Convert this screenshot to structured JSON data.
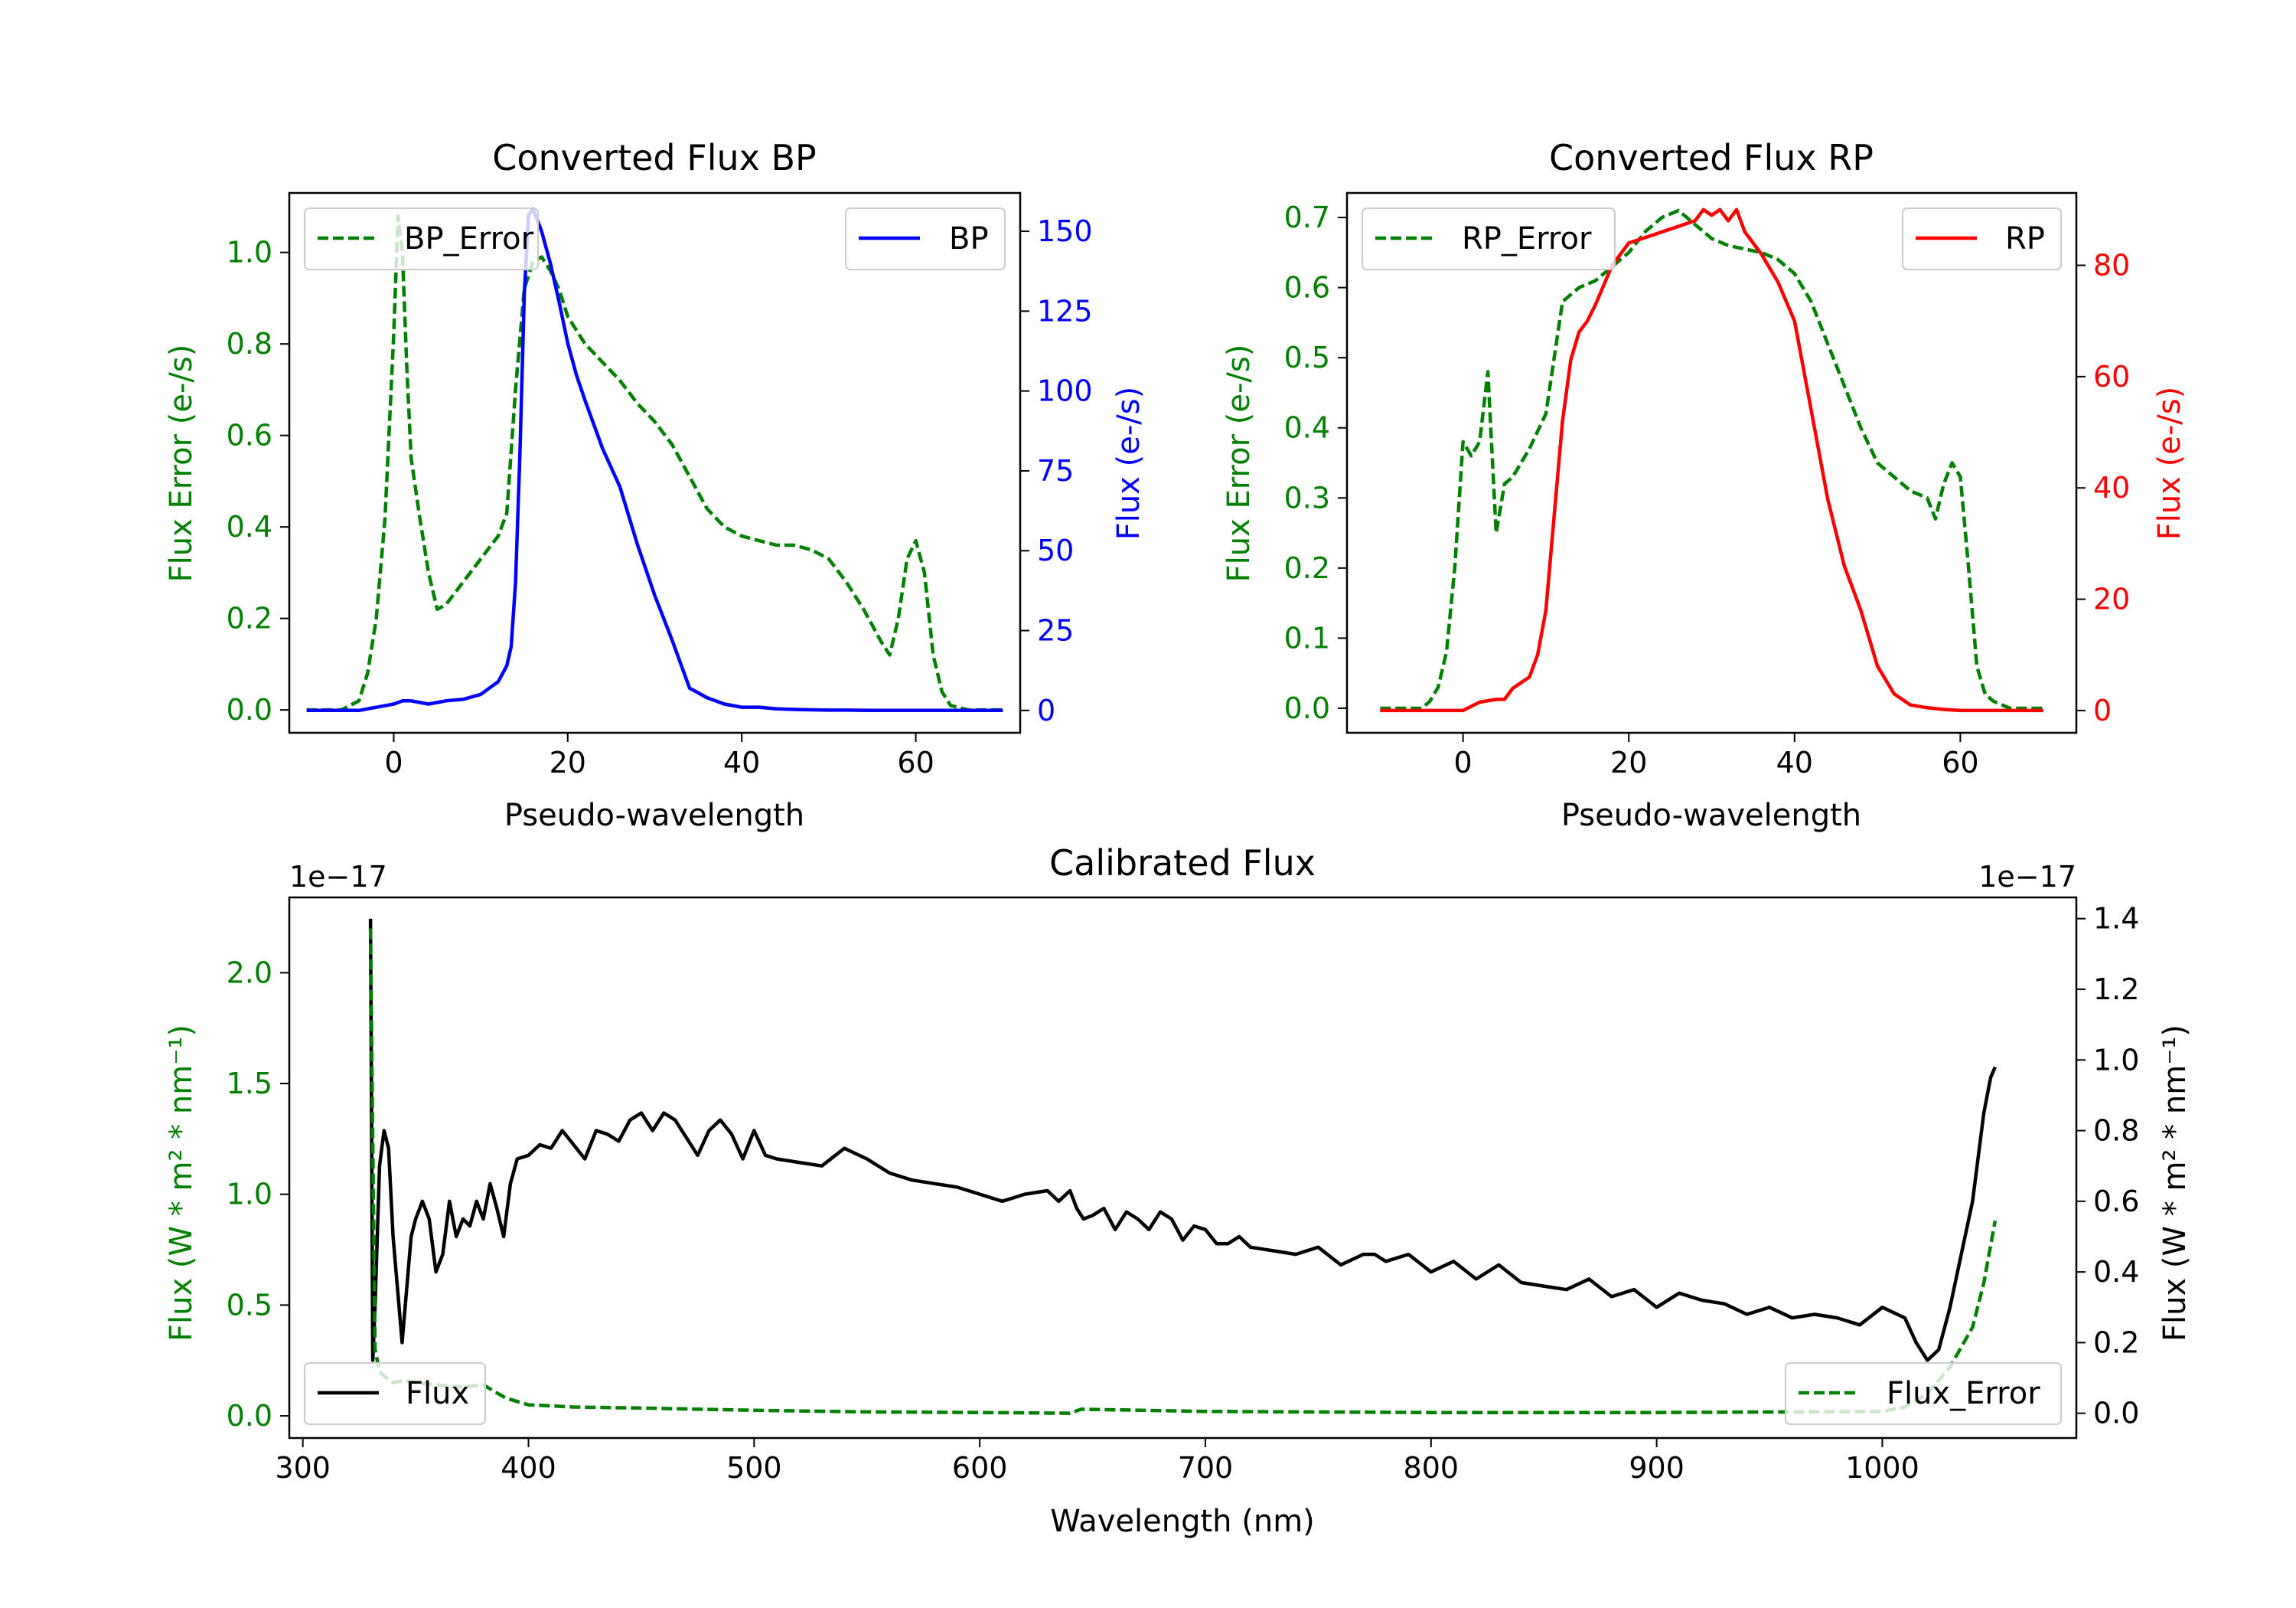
{
  "figure": {
    "background": "#ffffff"
  },
  "colors": {
    "error": "#008000",
    "bp": "#0000ff",
    "rp": "#ff0000",
    "flux": "#000000",
    "axis": "#000000"
  },
  "chart_data": [
    {
      "type": "line",
      "title": "Converted Flux BP",
      "xlabel": "Pseudo-wavelength",
      "ylabel_left": "Flux Error (e-/s)",
      "ylabel_right": "Flux (e-/s)",
      "xlim": [
        -12,
        72
      ],
      "ylim_left": [
        -0.05,
        1.13
      ],
      "ylim_right": [
        -7,
        162
      ],
      "xticks": [
        0,
        20,
        40,
        60
      ],
      "yticks_left": [
        0.0,
        0.2,
        0.4,
        0.6,
        0.8,
        1.0
      ],
      "yticks_left_labels": [
        "0.0",
        "0.2",
        "0.4",
        "0.6",
        "0.8",
        "1.0"
      ],
      "yticks_right": [
        0,
        25,
        50,
        75,
        100,
        125,
        150
      ],
      "yticks_right_labels": [
        "0",
        "25",
        "50",
        "75",
        "100",
        "125",
        "150"
      ],
      "legend_left": "BP_Error",
      "legend_right": "BP",
      "series_error": {
        "name": "BP_Error",
        "x": [
          -10,
          -6,
          -4,
          -3,
          -2,
          -1,
          0,
          0.5,
          1,
          1.5,
          2,
          3,
          4,
          5,
          6,
          8,
          10,
          12,
          13,
          14,
          15,
          16,
          17,
          18,
          19,
          20,
          22,
          24,
          26,
          28,
          30,
          32,
          34,
          36,
          38,
          40,
          42,
          44,
          46,
          48,
          50,
          52,
          54,
          56,
          57,
          58,
          59,
          60,
          61,
          62,
          63,
          64,
          66,
          68,
          70
        ],
        "y": [
          0.0,
          0.0,
          0.02,
          0.08,
          0.2,
          0.42,
          0.82,
          1.08,
          1.0,
          0.75,
          0.55,
          0.42,
          0.3,
          0.22,
          0.23,
          0.28,
          0.33,
          0.38,
          0.43,
          0.7,
          0.92,
          0.98,
          0.99,
          0.96,
          0.92,
          0.86,
          0.8,
          0.76,
          0.72,
          0.67,
          0.63,
          0.58,
          0.51,
          0.44,
          0.4,
          0.38,
          0.37,
          0.36,
          0.36,
          0.35,
          0.33,
          0.28,
          0.22,
          0.15,
          0.12,
          0.2,
          0.33,
          0.37,
          0.3,
          0.12,
          0.04,
          0.01,
          0.0,
          0.0,
          0.0
        ]
      },
      "series_flux": {
        "name": "BP",
        "x": [
          -10,
          -4,
          0,
          1,
          2,
          4,
          6,
          8,
          10,
          11,
          12,
          13,
          13.5,
          14,
          14.5,
          15,
          15.5,
          16,
          17,
          18,
          19,
          20,
          21,
          22,
          24,
          26,
          28,
          30,
          32,
          34,
          36,
          38,
          40,
          42,
          44,
          46,
          48,
          50,
          52,
          55,
          60,
          65,
          70
        ],
        "y": [
          0,
          0,
          2,
          3,
          3,
          2,
          3,
          3.5,
          5,
          7,
          9,
          14,
          20,
          40,
          80,
          130,
          155,
          157,
          150,
          140,
          128,
          115,
          105,
          97,
          82,
          70,
          52,
          36,
          22,
          7,
          4,
          2,
          1,
          1,
          0.5,
          0.3,
          0.2,
          0.1,
          0.1,
          0,
          0,
          0,
          0
        ]
      }
    },
    {
      "type": "line",
      "title": "Converted Flux RP",
      "xlabel": "Pseudo-wavelength",
      "ylabel_left": "Flux Error (e-/s)",
      "ylabel_right": "Flux (e-/s)",
      "xlim": [
        -14,
        74
      ],
      "ylim_left": [
        -0.035,
        0.735
      ],
      "ylim_right": [
        -4,
        93
      ],
      "xticks": [
        0,
        20,
        40,
        60
      ],
      "yticks_left": [
        0.0,
        0.1,
        0.2,
        0.3,
        0.4,
        0.5,
        0.6,
        0.7
      ],
      "yticks_left_labels": [
        "0.0",
        "0.1",
        "0.2",
        "0.3",
        "0.4",
        "0.5",
        "0.6",
        "0.7"
      ],
      "yticks_right": [
        0,
        20,
        40,
        60,
        80
      ],
      "yticks_right_labels": [
        "0",
        "20",
        "40",
        "60",
        "80"
      ],
      "legend_left": "RP_Error",
      "legend_right": "RP",
      "series_error": {
        "name": "RP_Error",
        "x": [
          -10,
          -5,
          -4,
          -3,
          -2,
          -1,
          0,
          1,
          2,
          3,
          4,
          5,
          6,
          8,
          10,
          12,
          14,
          16,
          18,
          20,
          22,
          24,
          26,
          28,
          30,
          32,
          34,
          36,
          38,
          40,
          42,
          44,
          46,
          48,
          50,
          52,
          54,
          56,
          57,
          58,
          59,
          60,
          61,
          62,
          63,
          64,
          66,
          70
        ],
        "y": [
          0,
          0,
          0.01,
          0.03,
          0.08,
          0.2,
          0.38,
          0.36,
          0.38,
          0.48,
          0.25,
          0.32,
          0.33,
          0.37,
          0.42,
          0.58,
          0.6,
          0.61,
          0.63,
          0.65,
          0.68,
          0.7,
          0.71,
          0.69,
          0.67,
          0.66,
          0.655,
          0.65,
          0.64,
          0.62,
          0.58,
          0.52,
          0.46,
          0.4,
          0.35,
          0.33,
          0.31,
          0.3,
          0.27,
          0.32,
          0.35,
          0.33,
          0.2,
          0.06,
          0.02,
          0.01,
          0,
          0
        ]
      },
      "series_flux": {
        "name": "RP",
        "x": [
          -10,
          -2,
          0,
          2,
          4,
          5,
          6,
          8,
          9,
          10,
          11,
          12,
          13,
          14,
          15,
          16,
          18,
          20,
          22,
          24,
          26,
          28,
          29,
          30,
          31,
          32,
          33,
          34,
          36,
          38,
          40,
          42,
          44,
          46,
          48,
          50,
          52,
          54,
          56,
          58,
          60,
          70
        ],
        "y": [
          0,
          0,
          0,
          1.5,
          2,
          2,
          4,
          6,
          10,
          18,
          35,
          52,
          63,
          68,
          70,
          73,
          80,
          84,
          85,
          86,
          87,
          88,
          90,
          89,
          90,
          88,
          90,
          86,
          82,
          77,
          70,
          54,
          38,
          26,
          18,
          8,
          3,
          1,
          0.5,
          0.2,
          0,
          0
        ]
      }
    },
    {
      "type": "line",
      "title": "Calibrated Flux",
      "xlabel": "Wavelength (nm)",
      "ylabel_left": "Flux (W * m² * nm⁻¹)",
      "ylabel_right": "Flux (W * m² * nm⁻¹)",
      "left_multiplier": "1e−17",
      "right_multiplier": "1e−17",
      "xlim": [
        294,
        1086
      ],
      "ylim_left": [
        -0.1,
        2.34
      ],
      "ylim_right": [
        -0.07,
        1.46
      ],
      "xticks": [
        300,
        400,
        500,
        600,
        700,
        800,
        900,
        1000
      ],
      "yticks_left": [
        0.0,
        0.5,
        1.0,
        1.5,
        2.0
      ],
      "yticks_left_labels": [
        "0.0",
        "0.5",
        "1.0",
        "1.5",
        "2.0"
      ],
      "yticks_right": [
        0.0,
        0.2,
        0.4,
        0.6,
        0.8,
        1.0,
        1.2,
        1.4
      ],
      "yticks_right_labels": [
        "0.0",
        "0.2",
        "0.4",
        "0.6",
        "0.8",
        "1.0",
        "1.2",
        "1.4"
      ],
      "legend_left": "Flux",
      "legend_right": "Flux_Error",
      "series_error": {
        "name": "Flux_Error",
        "x": [
          330,
          332,
          334,
          336,
          340,
          345,
          350,
          360,
          370,
          380,
          390,
          400,
          420,
          450,
          500,
          550,
          600,
          640,
          645,
          700,
          800,
          900,
          1000,
          1010,
          1020,
          1030,
          1040,
          1045,
          1050
        ],
        "y": [
          2.2,
          0.3,
          0.2,
          0.18,
          0.15,
          0.16,
          0.15,
          0.14,
          0.13,
          0.14,
          0.08,
          0.05,
          0.04,
          0.035,
          0.025,
          0.018,
          0.015,
          0.012,
          0.03,
          0.02,
          0.015,
          0.015,
          0.02,
          0.04,
          0.1,
          0.22,
          0.4,
          0.6,
          0.88
        ]
      },
      "series_flux": {
        "name": "Flux",
        "x": [
          330,
          331,
          332,
          334,
          336,
          338,
          340,
          342,
          344,
          346,
          348,
          350,
          353,
          356,
          359,
          362,
          365,
          368,
          371,
          374,
          377,
          380,
          383,
          386,
          389,
          392,
          395,
          400,
          405,
          410,
          415,
          420,
          425,
          430,
          435,
          440,
          445,
          450,
          455,
          460,
          465,
          470,
          475,
          480,
          485,
          490,
          495,
          500,
          505,
          510,
          520,
          530,
          540,
          550,
          560,
          570,
          580,
          590,
          600,
          610,
          620,
          630,
          635,
          640,
          643,
          646,
          650,
          655,
          660,
          665,
          670,
          675,
          680,
          685,
          690,
          695,
          700,
          705,
          710,
          715,
          720,
          730,
          740,
          750,
          760,
          770,
          775,
          780,
          790,
          800,
          810,
          820,
          830,
          840,
          850,
          860,
          870,
          880,
          890,
          900,
          910,
          920,
          930,
          940,
          950,
          960,
          970,
          980,
          990,
          1000,
          1010,
          1015,
          1020,
          1025,
          1030,
          1040,
          1045,
          1048,
          1050
        ],
        "y": [
          1.4,
          0.15,
          0.3,
          0.7,
          0.8,
          0.75,
          0.5,
          0.35,
          0.2,
          0.35,
          0.5,
          0.55,
          0.6,
          0.55,
          0.4,
          0.45,
          0.6,
          0.5,
          0.55,
          0.53,
          0.6,
          0.55,
          0.65,
          0.58,
          0.5,
          0.65,
          0.72,
          0.73,
          0.76,
          0.75,
          0.8,
          0.76,
          0.72,
          0.8,
          0.79,
          0.77,
          0.83,
          0.85,
          0.8,
          0.85,
          0.83,
          0.78,
          0.73,
          0.8,
          0.83,
          0.79,
          0.72,
          0.8,
          0.73,
          0.72,
          0.71,
          0.7,
          0.75,
          0.72,
          0.68,
          0.66,
          0.65,
          0.64,
          0.62,
          0.6,
          0.62,
          0.63,
          0.6,
          0.63,
          0.58,
          0.55,
          0.56,
          0.58,
          0.52,
          0.57,
          0.55,
          0.52,
          0.57,
          0.55,
          0.49,
          0.53,
          0.52,
          0.48,
          0.48,
          0.5,
          0.47,
          0.46,
          0.45,
          0.47,
          0.42,
          0.45,
          0.45,
          0.43,
          0.45,
          0.4,
          0.43,
          0.38,
          0.42,
          0.37,
          0.36,
          0.35,
          0.38,
          0.33,
          0.35,
          0.3,
          0.34,
          0.32,
          0.31,
          0.28,
          0.3,
          0.27,
          0.28,
          0.27,
          0.25,
          0.3,
          0.27,
          0.2,
          0.15,
          0.18,
          0.3,
          0.6,
          0.85,
          0.95,
          0.98
        ]
      }
    }
  ]
}
